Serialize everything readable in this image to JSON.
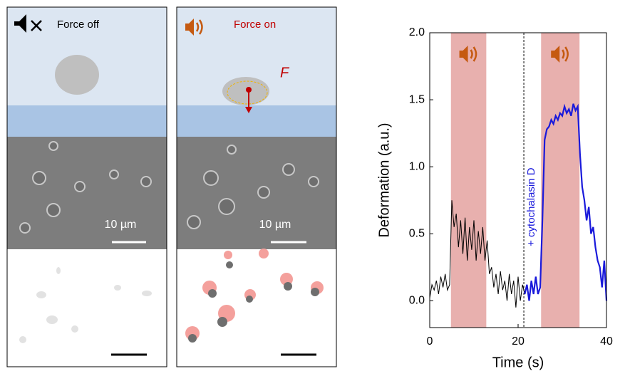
{
  "panels": [
    {
      "label": "Force off",
      "scale_label": "10 µm"
    },
    {
      "label": "Force on",
      "force_label": "F",
      "scale_label": "10 µm"
    }
  ],
  "chart_data": {
    "type": "line",
    "xlabel": "Time (s)",
    "ylabel": "Deformation (a.u.)",
    "annotation": "+ cytochalasin D",
    "xlim": [
      0,
      40
    ],
    "xticks": [
      0,
      20,
      40
    ],
    "ylim": [
      -0.2,
      2.0
    ],
    "yticks": [
      {
        "value": 0,
        "label": "0.0"
      },
      0.5,
      {
        "value": 1,
        "label": "1.0"
      },
      1.5,
      {
        "value": 2,
        "label": "2.0"
      }
    ],
    "shaded_regions": [
      [
        4.8,
        12.8
      ],
      [
        25.2,
        33.9
      ]
    ],
    "shade_color": "#e8b0ae",
    "vline": 21.3,
    "series": [
      {
        "color": "#000000",
        "x": [
          0,
          0.5,
          1,
          1.5,
          2,
          2.5,
          3,
          3.5,
          4,
          4.5,
          5,
          5.5,
          6,
          6.5,
          7,
          7.5,
          8,
          8.5,
          9,
          9.5,
          10,
          10.5,
          11,
          11.5,
          12,
          12.5,
          13,
          13.5,
          14,
          14.5,
          15,
          15.5,
          16,
          16.5,
          17,
          17.5,
          18,
          18.5,
          19,
          19.5,
          20,
          20.5,
          21,
          21.5
        ],
        "values": [
          0.02,
          0.12,
          0.08,
          0.15,
          0.05,
          0.18,
          0.1,
          0.2,
          0.08,
          0.12,
          0.75,
          0.55,
          0.65,
          0.4,
          0.6,
          0.35,
          0.62,
          0.3,
          0.55,
          0.38,
          0.6,
          0.3,
          0.52,
          0.35,
          0.55,
          0.3,
          0.45,
          0.2,
          0.25,
          0.1,
          0.2,
          0.05,
          0.22,
          0.08,
          0.15,
          0.0,
          0.2,
          0.05,
          0.15,
          -0.05,
          0.18,
          0.0,
          0.12,
          0.05
        ]
      },
      {
        "color": "#1a1adb",
        "x": [
          21.5,
          22,
          22.5,
          23,
          23.5,
          24,
          24.5,
          25,
          25.5,
          26,
          26.5,
          27,
          27.5,
          28,
          28.5,
          29,
          29.5,
          30,
          30.5,
          31,
          31.5,
          32,
          32.5,
          33,
          33.5,
          34,
          34.5,
          35,
          35.5,
          36,
          36.5,
          37,
          37.5,
          38,
          38.5,
          39,
          39.5,
          40
        ],
        "values": [
          0.05,
          0.12,
          0.0,
          0.15,
          0.05,
          0.18,
          0.05,
          0.1,
          0.6,
          1.2,
          1.28,
          1.3,
          1.35,
          1.32,
          1.38,
          1.35,
          1.4,
          1.38,
          1.45,
          1.4,
          1.43,
          1.38,
          1.47,
          1.42,
          1.45,
          1.1,
          0.85,
          0.75,
          0.6,
          0.7,
          0.5,
          0.55,
          0.4,
          0.3,
          0.25,
          0.1,
          0.3,
          0.0
        ]
      }
    ]
  }
}
